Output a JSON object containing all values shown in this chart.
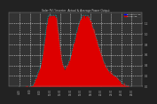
{
  "title": "Solar PV / Inverter  Actual & Average Power Output",
  "bg_color": "#222222",
  "plot_bg": "#333333",
  "grid_color": "#ffffff",
  "fill_color": "#dd0000",
  "line_color": "#00dddd",
  "legend_avg_color": "#0000ff",
  "legend_actual_color": "#dd0000",
  "ylim": [
    0,
    1.4
  ],
  "xlim": [
    0,
    1
  ],
  "num_points": 288
}
